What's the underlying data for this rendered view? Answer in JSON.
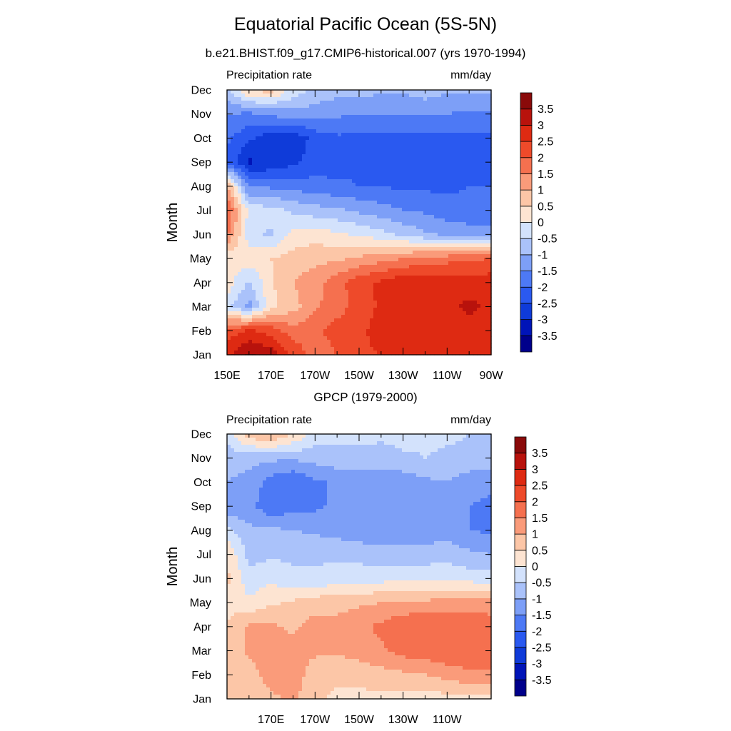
{
  "title": "Equatorial Pacific Ocean (5S-5N)",
  "subtitle": "b.e21.BHIST.f09_g17.CMIP6-historical.007 (yrs 1970-1994)",
  "colors": {
    "levels": [
      "#00008b",
      "#0014b8",
      "#0f3bd9",
      "#2a59f0",
      "#4d79f5",
      "#7d9ff7",
      "#aac2fa",
      "#d3e2fc",
      "#fde4d2",
      "#fcc6a7",
      "#fa9b7a",
      "#f5704f",
      "#ee4a2a",
      "#de2a12",
      "#b8120c",
      "#8a0a0a"
    ]
  },
  "chart_data": [
    {
      "type": "heatmap",
      "panel_title": "b.e21.BHIST.f09_g17.CMIP6-historical.007 (yrs 1970-1994)",
      "left_label": "Precipitation rate",
      "right_label": "mm/day",
      "ylabel": "Month",
      "xlabel": "",
      "x_tick_labels": [
        "150E",
        "170E",
        "170W",
        "150W",
        "130W",
        "110W",
        "90W"
      ],
      "x_values": [
        150,
        170,
        190,
        210,
        230,
        250,
        270
      ],
      "xlim": [
        150,
        270
      ],
      "y_tick_labels": [
        "Jan",
        "Feb",
        "Mar",
        "Apr",
        "May",
        "Jun",
        "Jul",
        "Aug",
        "Sep",
        "Oct",
        "Nov",
        "Dec"
      ],
      "colorbar_labels": [
        "-3.5",
        "-3",
        "-2.5",
        "-2",
        "-1.5",
        "-1",
        "-0.5",
        "0",
        "0.5",
        "1",
        "1.5",
        "2",
        "2.5",
        "3",
        "3.5"
      ],
      "grid": [
        [
          2.9,
          3.6,
          3.3,
          2.4,
          1.7,
          2.0,
          2.4,
          2.5,
          2.6,
          2.6,
          2.6,
          2.7,
          2.7
        ],
        [
          2.2,
          2.6,
          2.3,
          1.7,
          1.9,
          2.2,
          2.4,
          2.7,
          2.7,
          2.7,
          2.8,
          2.8,
          2.8
        ],
        [
          -0.3,
          -1.2,
          0.4,
          0.8,
          1.4,
          1.8,
          2.2,
          2.6,
          2.8,
          2.8,
          2.9,
          3.1,
          2.9
        ],
        [
          0.3,
          -0.6,
          0.4,
          1.0,
          1.3,
          1.8,
          2.3,
          2.6,
          2.9,
          2.8,
          2.8,
          2.8,
          2.8
        ],
        [
          0.1,
          0.3,
          0.5,
          0.7,
          0.8,
          0.9,
          1.1,
          1.3,
          1.5,
          1.7,
          1.8,
          1.9,
          2.0
        ],
        [
          1.6,
          -0.3,
          -0.6,
          0.2,
          0.3,
          0.1,
          -0.1,
          -0.3,
          -0.6,
          -0.9,
          -1.1,
          -1.2,
          -1.3
        ],
        [
          2.1,
          -0.2,
          -0.3,
          -0.6,
          -0.8,
          -0.9,
          -1.1,
          -1.3,
          -1.5,
          -1.6,
          -1.8,
          -1.9,
          -1.9
        ],
        [
          1.1,
          -1.6,
          -1.6,
          -1.7,
          -1.8,
          -1.9,
          -2.0,
          -2.0,
          -2.1,
          -2.1,
          -2.1,
          -2.0,
          -2.0
        ],
        [
          -2.1,
          -3.1,
          -2.9,
          -2.6,
          -2.3,
          -2.2,
          -2.1,
          -2.1,
          -2.2,
          -2.2,
          -2.2,
          -2.1,
          -2.1
        ],
        [
          -1.9,
          -2.4,
          -2.8,
          -2.9,
          -2.3,
          -2.1,
          -2.1,
          -2.1,
          -2.2,
          -2.2,
          -2.2,
          -2.1,
          -2.1
        ],
        [
          -1.5,
          -1.6,
          -1.4,
          -1.2,
          -1.3,
          -1.4,
          -1.5,
          -1.5,
          -1.5,
          -1.5,
          -1.5,
          -1.6,
          -1.6
        ],
        [
          -0.6,
          0.6,
          0.7,
          -0.2,
          -0.6,
          -0.8,
          -0.8,
          -0.9,
          -0.9,
          -0.7,
          -0.9,
          -0.9,
          -0.9
        ]
      ]
    },
    {
      "type": "heatmap",
      "panel_title": "GPCP (1979-2000)",
      "left_label": "Precipitation rate",
      "right_label": "mm/day",
      "ylabel": "Month",
      "xlabel": "",
      "x_tick_labels": [
        "170E",
        "170W",
        "150W",
        "130W",
        "110W"
      ],
      "x_values": [
        170,
        190,
        210,
        230,
        250
      ],
      "xlim": [
        150,
        270
      ],
      "y_tick_labels": [
        "Jan",
        "Feb",
        "Mar",
        "Apr",
        "May",
        "Jun",
        "Jul",
        "Aug",
        "Sep",
        "Oct",
        "Nov",
        "Dec"
      ],
      "colorbar_labels": [
        "-3.5",
        "-3",
        "-2.5",
        "-2",
        "-1.5",
        "-1",
        "-0.5",
        "0",
        "0.5",
        "1",
        "1.5",
        "2",
        "2.5",
        "3",
        "3.5"
      ],
      "grid": [
        [
          0.6,
          0.8,
          0.9,
          1.1,
          0.6,
          0.4,
          0.3,
          0.4,
          0.3,
          0.2,
          0.3,
          0.3,
          0.4
        ],
        [
          0.7,
          0.8,
          1.2,
          1.3,
          0.7,
          0.6,
          0.7,
          0.8,
          0.9,
          1.0,
          1.2,
          1.4,
          1.4
        ],
        [
          0.6,
          1.1,
          1.3,
          1.2,
          1.1,
          1.1,
          1.2,
          1.4,
          1.7,
          1.8,
          1.9,
          1.9,
          1.8
        ],
        [
          0.5,
          1.1,
          1.1,
          0.9,
          1.2,
          1.2,
          1.4,
          1.6,
          1.9,
          2.0,
          1.9,
          2.0,
          1.8
        ],
        [
          0.4,
          0.1,
          0.4,
          0.6,
          0.8,
          0.8,
          0.9,
          1.0,
          1.1,
          1.1,
          1.2,
          1.2,
          1.2
        ],
        [
          0.6,
          -0.3,
          -0.1,
          -0.4,
          -0.4,
          -0.3,
          -0.2,
          -0.2,
          -0.1,
          -0.1,
          -0.1,
          -0.2,
          -0.3
        ],
        [
          0.5,
          -0.7,
          -0.6,
          -0.6,
          -0.6,
          -0.6,
          -0.7,
          -0.8,
          -0.8,
          -0.8,
          -0.7,
          -0.9,
          -1.0
        ],
        [
          -0.3,
          -0.9,
          -0.9,
          -1.0,
          -1.1,
          -1.2,
          -1.3,
          -1.4,
          -1.3,
          -1.3,
          -1.2,
          -1.5,
          -1.6
        ],
        [
          -1.5,
          -1.3,
          -1.9,
          -1.7,
          -1.6,
          -1.4,
          -1.4,
          -1.5,
          -1.4,
          -1.3,
          -1.2,
          -1.5,
          -1.6
        ],
        [
          -1.0,
          -1.2,
          -1.7,
          -2.0,
          -1.6,
          -1.4,
          -1.4,
          -1.4,
          -1.3,
          -1.1,
          -1.0,
          -1.3,
          -1.4
        ],
        [
          -0.8,
          -0.8,
          -0.9,
          -0.9,
          -0.8,
          -0.7,
          -0.7,
          -0.7,
          -0.6,
          -0.5,
          -0.6,
          -0.6,
          -0.7
        ],
        [
          -0.3,
          0.8,
          1.1,
          0.5,
          -0.2,
          -0.3,
          -0.3,
          -0.4,
          -0.3,
          -0.4,
          -0.4,
          -0.5,
          -0.5
        ]
      ]
    }
  ]
}
